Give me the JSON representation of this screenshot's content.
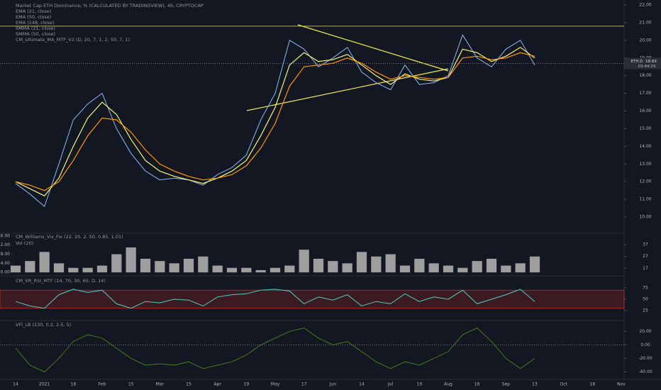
{
  "chart_data": [
    {
      "type": "line",
      "title": "Market Cap ETH Dominance, %  (CALCULATED BY TRADINGVIEW), 4h, CRYPTOCAP",
      "indicators": [
        "EMA (21, close)",
        "EMA (50, close)",
        "EMA (148, close)",
        "SMMA (21, close)",
        "SMMA (50, close)",
        "CM_Ultimate_MA_MTF_V2 (D, 20, 7, 1, 2, 50, 7, 1)"
      ],
      "categories": [
        "14",
        null,
        "2021",
        null,
        "18",
        null,
        "Feb",
        null,
        "15",
        null,
        "Mar",
        null,
        "15",
        null,
        "Apr",
        null,
        "19",
        null,
        "May",
        null,
        "17",
        null,
        "Jun",
        null,
        "14",
        null,
        "Jul",
        null,
        "19",
        null,
        "Aug",
        null,
        "16",
        null,
        "Sep",
        null,
        "13",
        null,
        "Oct",
        null,
        "18",
        null,
        "Nov"
      ],
      "series": [
        {
          "name": "ETH.D",
          "color": "#8fb8f7",
          "values": [
            11.9,
            11.3,
            10.6,
            13,
            15.5,
            16.4,
            17.0,
            15.0,
            13.6,
            12.6,
            12.1,
            12.2,
            12.1,
            11.8,
            12.4,
            12.8,
            13.5,
            15.5,
            17.0,
            20.0,
            19.5,
            18.5,
            19.0,
            19.6,
            18.2,
            17.6,
            17.2,
            18.6,
            17.5,
            17.6,
            18.0,
            20.3,
            19.0,
            18.5,
            19.5,
            20.0,
            18.6,
            null,
            null,
            null,
            null,
            null,
            null
          ]
        },
        {
          "name": "EMA (21, close)",
          "color": "#f5f57a",
          "values": [
            12.0,
            11.6,
            11.2,
            12.2,
            14.0,
            15.6,
            16.5,
            15.8,
            14.4,
            13.2,
            12.6,
            12.3,
            12.1,
            11.9,
            12.2,
            12.6,
            13.2,
            14.6,
            16.2,
            18.6,
            19.3,
            18.8,
            18.9,
            19.2,
            18.6,
            18.0,
            17.5,
            18.1,
            17.8,
            17.7,
            17.9,
            19.5,
            19.3,
            18.8,
            19.1,
            19.6,
            19.0,
            null,
            null,
            null,
            null,
            null,
            null
          ]
        },
        {
          "name": "EMA (50, close)",
          "color": "#ff9800",
          "values": [
            12.0,
            11.8,
            11.5,
            12.0,
            13.2,
            14.6,
            15.6,
            15.5,
            14.8,
            13.8,
            13.0,
            12.6,
            12.3,
            12.1,
            12.2,
            12.4,
            12.9,
            13.9,
            15.3,
            17.4,
            18.5,
            18.6,
            18.7,
            19.0,
            18.7,
            18.2,
            17.8,
            18.0,
            17.9,
            17.8,
            17.9,
            19.0,
            19.1,
            18.9,
            19.0,
            19.3,
            19.1,
            null,
            null,
            null,
            null,
            null,
            null
          ]
        }
      ],
      "hline": 20.8,
      "last_price": {
        "value": 18.69,
        "label": "18.69"
      },
      "symbol": "ETH.D",
      "countdown": "03:44:29",
      "ylim": [
        9.12,
        22.28
      ],
      "yticks": [
        {
          "value": 22,
          "label": "22.00"
        },
        {
          "value": 21,
          "label": "21.00"
        },
        {
          "value": 20,
          "label": "20.00"
        },
        {
          "value": 19,
          "label": "19.00"
        },
        {
          "value": 18,
          "label": "18.00"
        },
        {
          "value": 17,
          "label": "17.00"
        },
        {
          "value": 16,
          "label": "16.00"
        },
        {
          "value": 15,
          "label": "15.00"
        },
        {
          "value": 14,
          "label": "14.00"
        },
        {
          "value": 13,
          "label": "13.00"
        },
        {
          "value": 12,
          "label": "12.00"
        },
        {
          "value": 11,
          "label": "11.00"
        },
        {
          "value": 10,
          "label": "10.00"
        }
      ]
    },
    {
      "type": "bar",
      "title": "CM_Williams_Vix_Fix (22, 20, 2, 50, 0.85, 1.01)",
      "subtitle": "Vol (20)",
      "color": "#9e9e9e",
      "values": [
        3,
        5,
        9,
        4,
        2,
        2,
        3,
        8,
        11,
        6,
        5,
        4,
        6,
        7,
        3,
        2,
        2,
        1,
        2,
        3,
        10,
        6,
        5,
        4,
        9,
        7,
        8,
        3,
        6,
        4,
        3,
        2,
        5,
        6,
        3,
        4,
        7,
        null,
        null,
        null,
        null,
        null,
        null
      ],
      "ylim": [
        -1.2,
        16.9
      ],
      "yticks": [
        {
          "value": 16,
          "label": "16.00"
        },
        {
          "value": 12,
          "label": "12.00"
        },
        {
          "value": 8,
          "label": "8.00"
        },
        {
          "value": 4,
          "label": "4.00"
        },
        {
          "value": 0,
          "label": "0.00"
        }
      ],
      "y2lim": [
        11.2,
        46
      ],
      "y2ticks": [
        37,
        27,
        17
      ]
    },
    {
      "type": "line",
      "title": "CM_VR_RSI_MTF (14, 70, 30, 60, D, 14)",
      "color": "#4dd0c4",
      "band": [
        30,
        70
      ],
      "values": [
        45,
        35,
        30,
        60,
        72,
        65,
        70,
        40,
        30,
        45,
        42,
        50,
        48,
        35,
        55,
        60,
        62,
        70,
        72,
        68,
        40,
        55,
        48,
        60,
        35,
        45,
        40,
        62,
        45,
        55,
        50,
        70,
        40,
        50,
        60,
        72,
        45,
        null,
        null,
        null,
        null,
        null,
        null
      ],
      "ylim": [
        3,
        100
      ],
      "yticks": [
        75,
        50,
        25
      ]
    },
    {
      "type": "line",
      "title": "VFI_LB (130, 0.2, 2.5, 5)",
      "color": "#4a7a1c",
      "values": [
        -5,
        -30,
        -40,
        -20,
        5,
        15,
        10,
        -5,
        -20,
        -30,
        -28,
        -30,
        -25,
        -35,
        -30,
        -25,
        -15,
        0,
        10,
        20,
        25,
        10,
        0,
        5,
        -10,
        -25,
        -35,
        -25,
        -30,
        -20,
        -10,
        15,
        25,
        5,
        -20,
        -35,
        -20,
        null,
        null,
        null,
        null,
        null,
        null
      ],
      "ylim": [
        -51,
        36
      ],
      "yticks": [
        {
          "value": 20,
          "label": "20.00"
        },
        {
          "value": 0,
          "label": "0.00"
        },
        {
          "value": -20,
          "label": "-20.00"
        },
        {
          "value": -40,
          "label": "-40.00"
        }
      ]
    }
  ]
}
